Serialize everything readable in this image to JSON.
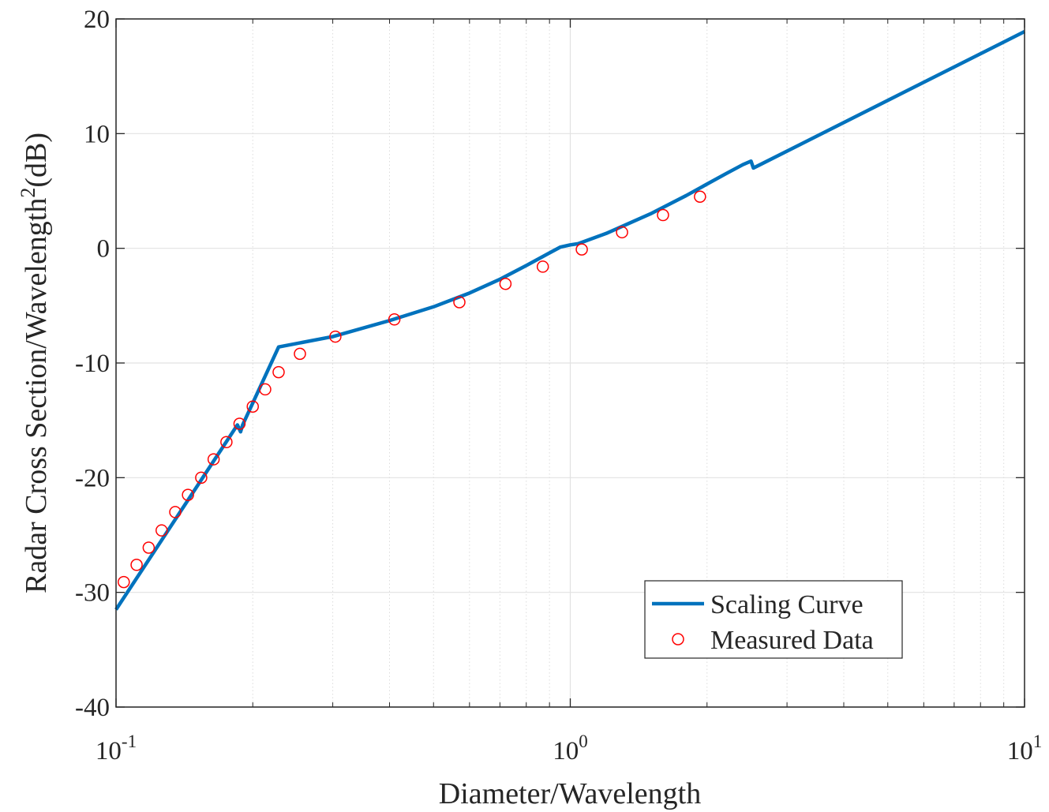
{
  "chart_data": {
    "type": "line",
    "x_scale": "log",
    "xlabel": "Diameter/Wavelength",
    "ylabel": "Radar Cross Section/Wavelength",
    "ylabel_superscript": "2",
    "ylabel_suffix": "(dB)",
    "xlim": [
      0.1,
      10
    ],
    "ylim": [
      -40,
      20
    ],
    "grid": true,
    "x_ticks": [
      {
        "value": 0.1,
        "base": "10",
        "exp": "-1"
      },
      {
        "value": 1,
        "base": "10",
        "exp": "0"
      },
      {
        "value": 10,
        "base": "10",
        "exp": "1"
      }
    ],
    "y_ticks": [
      {
        "value": -40,
        "label": "-40"
      },
      {
        "value": -30,
        "label": "-30"
      },
      {
        "value": -20,
        "label": "-20"
      },
      {
        "value": -10,
        "label": "-10"
      },
      {
        "value": 0,
        "label": "0"
      },
      {
        "value": 10,
        "label": "10"
      },
      {
        "value": 20,
        "label": "20"
      }
    ],
    "legend_position": "bottom-right",
    "series": [
      {
        "name": "Scaling Curve",
        "style": "line",
        "color": "#0072BD",
        "x": [
          0.1,
          0.185,
          0.188,
          0.19,
          0.228,
          0.3,
          0.4,
          0.5,
          0.6,
          0.7,
          0.8,
          0.9,
          0.95,
          1.0,
          1.04,
          1.2,
          1.5,
          1.8,
          2.0,
          2.2,
          2.4,
          2.5,
          2.53,
          10
        ],
        "y": [
          -31.5,
          -15.4,
          -16.0,
          -15.4,
          -8.6,
          -7.7,
          -6.3,
          -5.1,
          -3.9,
          -2.7,
          -1.5,
          -0.4,
          0.1,
          0.3,
          0.4,
          1.3,
          3.0,
          4.6,
          5.6,
          6.5,
          7.3,
          7.6,
          7.0,
          18.9
        ]
      },
      {
        "name": "Measured Data",
        "style": "marker",
        "marker": "circle",
        "color": "#FF0000",
        "x": [
          0.104,
          0.111,
          0.118,
          0.126,
          0.135,
          0.144,
          0.154,
          0.164,
          0.175,
          0.187,
          0.2,
          0.213,
          0.228,
          0.254,
          0.304,
          0.41,
          0.57,
          0.72,
          0.87,
          1.06,
          1.3,
          1.6,
          1.93
        ],
        "y": [
          -29.1,
          -27.6,
          -26.1,
          -24.6,
          -23.0,
          -21.5,
          -20.0,
          -18.4,
          -16.9,
          -15.3,
          -13.8,
          -12.3,
          -10.8,
          -9.2,
          -7.7,
          -6.2,
          -4.7,
          -3.1,
          -1.6,
          -0.1,
          1.4,
          2.9,
          4.5
        ]
      }
    ]
  }
}
